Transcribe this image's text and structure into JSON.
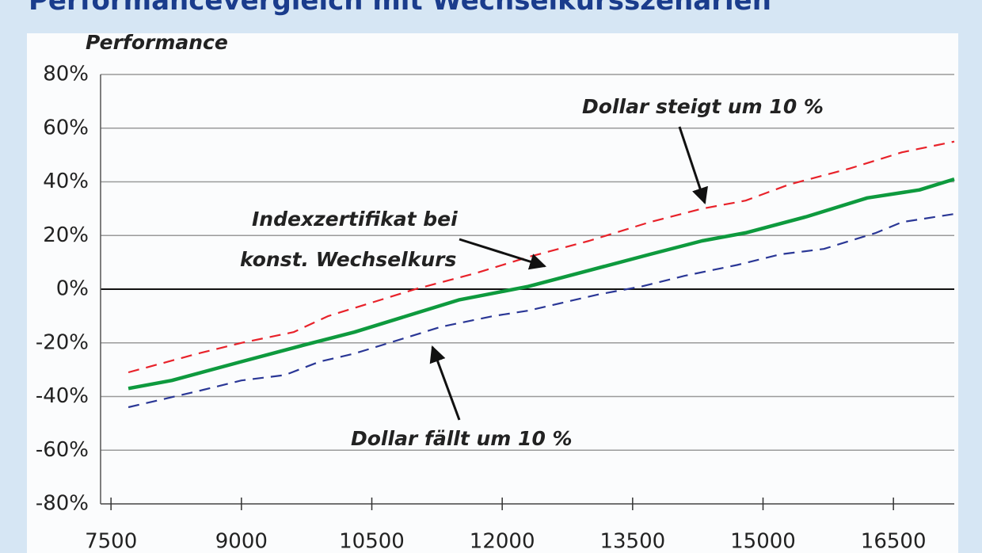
{
  "chart_data": {
    "type": "line",
    "title": "Performancevergleich mit Wechselkursszenarien",
    "y_label": "Performance",
    "xlim": [
      7380,
      17200
    ],
    "ylim": [
      -80,
      80
    ],
    "xticks": [
      7500,
      9000,
      10500,
      12000,
      13500,
      15000,
      16500
    ],
    "yticks": [
      {
        "value": -80,
        "label": "-80%"
      },
      {
        "value": -60,
        "label": "-60%"
      },
      {
        "value": -40,
        "label": "-40%"
      },
      {
        "value": -20,
        "label": "-20%"
      },
      {
        "value": 0,
        "label": "0%"
      },
      {
        "value": 20,
        "label": "20%"
      },
      {
        "value": 40,
        "label": "40%"
      },
      {
        "value": 60,
        "label": "60%"
      },
      {
        "value": 80,
        "label": "80%"
      }
    ],
    "grid": true,
    "series": [
      {
        "color": "#e8222a",
        "dash": true,
        "x": [
          7700,
          8500,
          9000,
          9600,
          10000,
          10500,
          11000,
          11700,
          12300,
          13000,
          13700,
          14300,
          14800,
          15300,
          16000,
          16600,
          17200
        ],
        "values": [
          -31,
          -24,
          -20,
          -16,
          -10,
          -5,
          0,
          6,
          12,
          18,
          25,
          30,
          33,
          39,
          45,
          51,
          55
        ]
      },
      {
        "color": "#0e9a3e",
        "dash": false,
        "x": [
          7700,
          8200,
          9000,
          9700,
          10300,
          10900,
          11500,
          12300,
          13000,
          13700,
          14300,
          14800,
          15500,
          16200,
          16800,
          17200
        ],
        "values": [
          -37,
          -34,
          -27,
          -21,
          -16,
          -10,
          -4,
          1,
          7,
          13,
          18,
          21,
          27,
          34,
          37,
          41
        ]
      },
      {
        "color": "#2a3796",
        "dash": true,
        "x": [
          7700,
          8500,
          9000,
          9500,
          9900,
          10300,
          10700,
          11300,
          11900,
          12300,
          13100,
          13600,
          14100,
          14700,
          15200,
          15700,
          16300,
          16600,
          17200
        ],
        "values": [
          -44,
          -38,
          -34,
          -32,
          -27,
          -24,
          -20,
          -14,
          -10,
          -8,
          -2,
          1,
          5,
          9,
          13,
          15,
          21,
          25,
          28
        ]
      }
    ],
    "annotations": [
      "Dollar steigt um 10 %",
      "Indexzertifikat bei",
      "konst. Wechselkurs",
      "Dollar fällt um 10 %"
    ]
  }
}
